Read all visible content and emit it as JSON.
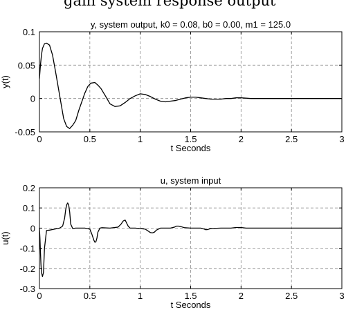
{
  "page_caption": "gain system response output",
  "chart_data": [
    {
      "type": "line",
      "title": "y, system output, k0 =   0.08, b0 =   0.00, m1 =  125.0",
      "xlabel": "t Seconds",
      "ylabel": "y(t)",
      "xlim": [
        0,
        3
      ],
      "ylim": [
        -0.05,
        0.1
      ],
      "xticks": [
        0,
        0.5,
        1,
        1.5,
        2,
        2.5,
        3
      ],
      "xtick_labels": [
        "0",
        "0.5",
        "1",
        "1.5",
        "2",
        "2.5",
        "3"
      ],
      "yticks": [
        -0.05,
        0,
        0.05,
        0.1
      ],
      "ytick_labels": [
        "-0.05",
        "0",
        "0.05",
        "0.1"
      ],
      "grid": true,
      "series": [
        {
          "color": "#000000",
          "x": [
            0,
            0.01,
            0.02,
            0.03,
            0.05,
            0.07,
            0.1,
            0.13,
            0.16,
            0.2,
            0.24,
            0.27,
            0.3,
            0.33,
            0.36,
            0.39,
            0.42,
            0.45,
            0.48,
            0.51,
            0.55,
            0.58,
            0.61,
            0.65,
            0.7,
            0.75,
            0.8,
            0.85,
            0.9,
            0.95,
            1.0,
            1.05,
            1.1,
            1.15,
            1.2,
            1.25,
            1.3,
            1.35,
            1.4,
            1.45,
            1.5,
            1.55,
            1.6,
            1.65,
            1.7,
            1.75,
            1.8,
            1.85,
            1.9,
            1.95,
            2.0,
            2.1,
            2.2,
            2.3,
            2.4,
            2.5,
            2.6,
            2.7,
            2.8,
            2.9,
            3.0
          ],
          "y": [
            0.03,
            0.05,
            0.065,
            0.075,
            0.082,
            0.083,
            0.08,
            0.065,
            0.04,
            0.005,
            -0.03,
            -0.042,
            -0.045,
            -0.04,
            -0.033,
            -0.018,
            -0.005,
            0.008,
            0.018,
            0.023,
            0.024,
            0.02,
            0.015,
            0.005,
            -0.008,
            -0.012,
            -0.011,
            -0.006,
            0.0,
            0.004,
            0.007,
            0.006,
            0.003,
            -0.001,
            -0.004,
            -0.005,
            -0.004,
            -0.003,
            -0.001,
            0.001,
            0.002,
            0.002,
            0.001,
            0.0,
            -0.001,
            -0.001,
            -0.001,
            0.0,
            0.0,
            0.001,
            0.001,
            0.0,
            0.0,
            0.0,
            0.0,
            0.0,
            0.0,
            0.0,
            0.0,
            0.0,
            0.0
          ]
        }
      ]
    },
    {
      "type": "line",
      "title": "u, system input",
      "xlabel": "t Seconds",
      "ylabel": "u(t)",
      "xlim": [
        0,
        3
      ],
      "ylim": [
        -0.3,
        0.2
      ],
      "xticks": [
        0,
        0.5,
        1,
        1.5,
        2,
        2.5,
        3
      ],
      "xtick_labels": [
        "0",
        "0.5",
        "1",
        "1.5",
        "2",
        "2.5",
        "3"
      ],
      "yticks": [
        -0.3,
        -0.2,
        -0.1,
        0,
        0.1,
        0.2
      ],
      "ytick_labels": [
        "-0.3",
        "-0.2",
        "-0.1",
        "0",
        "0.1",
        "0.2"
      ],
      "grid": true,
      "series": [
        {
          "color": "#000000",
          "x": [
            0,
            0.005,
            0.01,
            0.015,
            0.02,
            0.03,
            0.04,
            0.05,
            0.07,
            0.1,
            0.15,
            0.2,
            0.23,
            0.25,
            0.26,
            0.27,
            0.28,
            0.29,
            0.3,
            0.31,
            0.33,
            0.36,
            0.45,
            0.5,
            0.52,
            0.54,
            0.55,
            0.56,
            0.57,
            0.58,
            0.6,
            0.62,
            0.7,
            0.78,
            0.81,
            0.83,
            0.85,
            0.86,
            0.88,
            0.9,
            0.95,
            1.05,
            1.08,
            1.1,
            1.12,
            1.14,
            1.16,
            1.2,
            1.3,
            1.34,
            1.36,
            1.38,
            1.4,
            1.44,
            1.5,
            1.6,
            1.63,
            1.65,
            1.67,
            1.7,
            1.8,
            1.9,
            1.95,
            2.0,
            2.05,
            2.2,
            2.5,
            3.0
          ],
          "y": [
            0.0,
            -0.05,
            -0.12,
            -0.18,
            -0.22,
            -0.24,
            -0.22,
            -0.1,
            -0.012,
            -0.01,
            -0.005,
            0.0,
            0.01,
            0.05,
            0.09,
            0.115,
            0.125,
            0.115,
            0.08,
            0.02,
            -0.002,
            0.0,
            0.0,
            -0.005,
            -0.03,
            -0.06,
            -0.07,
            -0.068,
            -0.05,
            -0.02,
            0.0,
            0.002,
            0.0,
            0.005,
            0.02,
            0.035,
            0.04,
            0.03,
            0.01,
            0.0,
            0.0,
            -0.005,
            -0.015,
            -0.022,
            -0.024,
            -0.02,
            -0.01,
            0.0,
            0.0,
            0.005,
            0.01,
            0.01,
            0.008,
            0.002,
            0.0,
            0.0,
            -0.004,
            -0.008,
            -0.007,
            -0.002,
            0.0,
            0.0,
            0.003,
            0.003,
            0.0,
            0.0,
            0.0,
            0.0
          ]
        }
      ]
    }
  ]
}
